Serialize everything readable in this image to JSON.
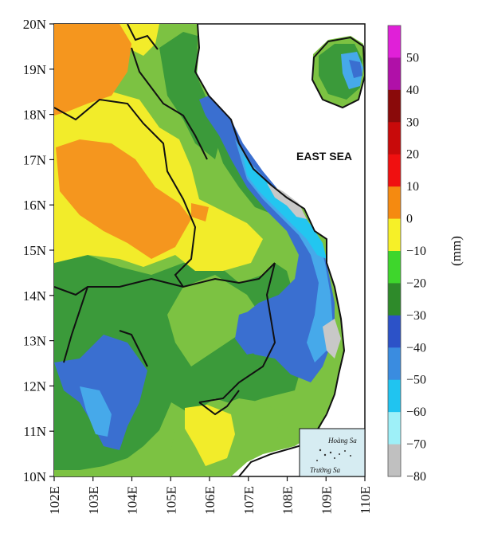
{
  "map": {
    "lat_labels": [
      "20N",
      "19N",
      "18N",
      "17N",
      "16N",
      "15N",
      "14N",
      "13N",
      "12N",
      "11N",
      "10N"
    ],
    "lon_labels": [
      "102E",
      "103E",
      "104E",
      "105E",
      "106E",
      "107E",
      "108E",
      "109E",
      "110E"
    ],
    "sea_label": "EAST SEA",
    "inset_labels": [
      "Hoàng Sa",
      "Trường Sa"
    ]
  },
  "colorbar": {
    "unit": "(mm)",
    "tick_labels": [
      "50",
      "40",
      "30",
      "20",
      "10",
      "0",
      "−10",
      "−20",
      "−30",
      "−40",
      "−50",
      "−60",
      "−70",
      "−80"
    ],
    "colors": [
      "#e020d8",
      "#b010a8",
      "#8a0a0a",
      "#c80a0a",
      "#f01010",
      "#f58a10",
      "#f6f028",
      "#3ed62c",
      "#2e8a2a",
      "#2c52c8",
      "#3a8ce0",
      "#20c4f0",
      "#9ef0f8",
      "#c0c0c0"
    ]
  },
  "palette": {
    "orange": "#f5961e",
    "yellow": "#f2ec2a",
    "light_green": "#7cc242",
    "dark_green": "#3b9a3a",
    "blue": "#3a6fd0",
    "light_blue": "#46a9ea",
    "cyan": "#22c6f0",
    "gray": "#c8c8c8",
    "land_inset": "#d6ecf2"
  }
}
